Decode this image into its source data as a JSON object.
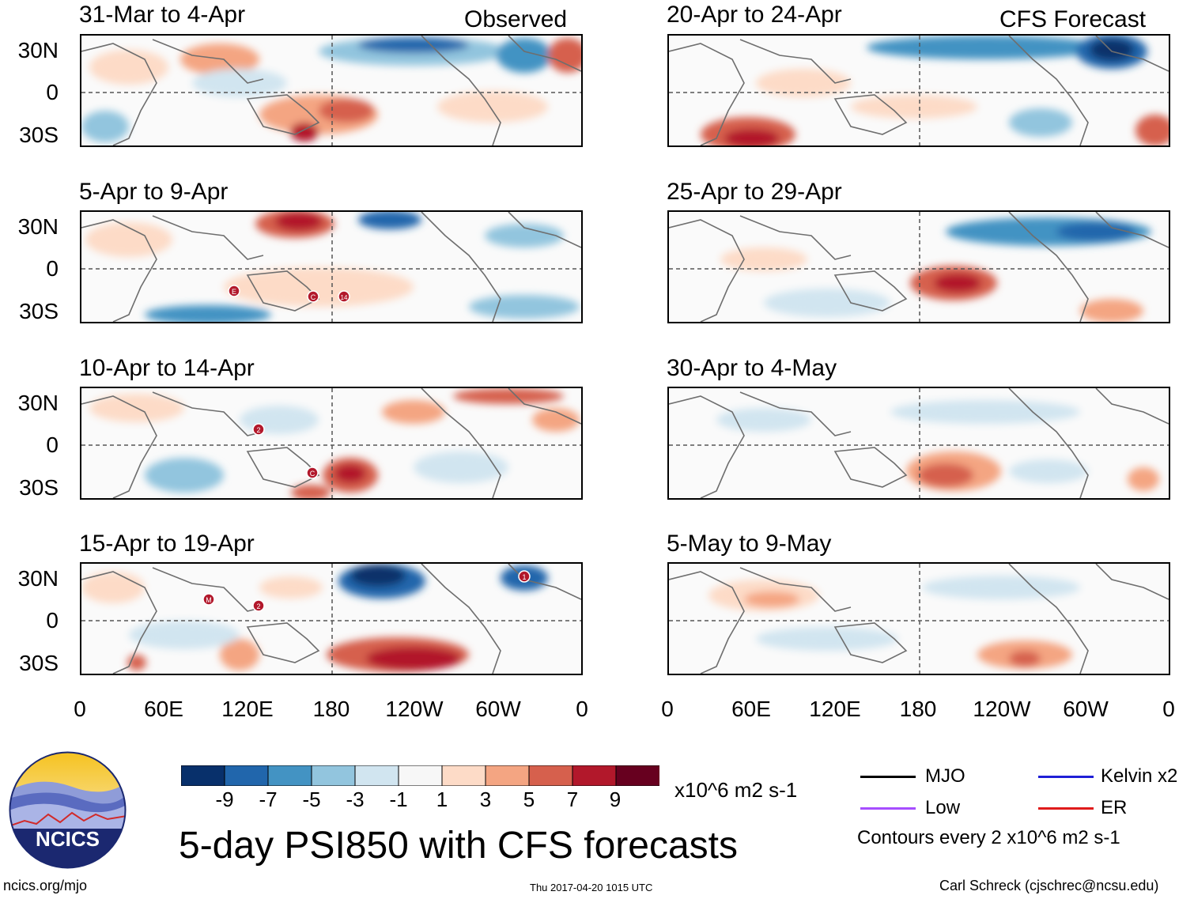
{
  "left_column_label": "Observed",
  "right_column_label": "CFS Forecast",
  "observed_panels": [
    {
      "title": "31-Mar to 4-Apr"
    },
    {
      "title": "5-Apr to 9-Apr"
    },
    {
      "title": "10-Apr to 14-Apr"
    },
    {
      "title": "15-Apr to 19-Apr"
    }
  ],
  "forecast_panels": [
    {
      "title": "20-Apr to 24-Apr"
    },
    {
      "title": "25-Apr to 29-Apr"
    },
    {
      "title": "30-Apr to 4-May"
    },
    {
      "title": "5-May to 9-May"
    }
  ],
  "lat_labels": [
    "30N",
    "0",
    "30S"
  ],
  "lon_labels": [
    "0",
    "60E",
    "120E",
    "180",
    "120W",
    "60W",
    "0"
  ],
  "storm_markers": [
    {
      "panel": "5-Apr to 9-Apr",
      "label": "E"
    },
    {
      "panel": "5-Apr to 9-Apr",
      "label": "C"
    },
    {
      "panel": "5-Apr to 9-Apr",
      "label": "14"
    },
    {
      "panel": "10-Apr to 14-Apr",
      "label": "2"
    },
    {
      "panel": "10-Apr to 14-Apr",
      "label": "C"
    },
    {
      "panel": "15-Apr to 19-Apr",
      "label": "M"
    },
    {
      "panel": "15-Apr to 19-Apr",
      "label": "2"
    },
    {
      "panel": "15-Apr to 19-Apr",
      "label": "1"
    }
  ],
  "colorbar": {
    "colors": [
      "#08306b",
      "#2166ac",
      "#4393c3",
      "#92c5de",
      "#d1e5f0",
      "#f7f7f7",
      "#fddbc7",
      "#f4a582",
      "#d6604d",
      "#b2182b",
      "#67001f"
    ],
    "ticks": [
      "-9",
      "-7",
      "-5",
      "-3",
      "-1",
      "1",
      "3",
      "5",
      "7",
      "9"
    ],
    "units": "x10^6 m2 s-1"
  },
  "legend": {
    "items": [
      {
        "label": "MJO",
        "color": "#000000"
      },
      {
        "label": "Kelvin x2",
        "color": "#1f1fd6"
      },
      {
        "label": "Low",
        "color": "#a64dff"
      },
      {
        "label": "ER",
        "color": "#e01b1b"
      }
    ],
    "contour_note": "Contours every 2 x10^6 m2 s-1"
  },
  "logo_text": "NCICS",
  "main_title": "5-day PSI850 with CFS forecasts",
  "footer": {
    "url": "ncics.org/mjo",
    "timestamp": "Thu 2017-04-20 1015 UTC",
    "credit": "Carl Schreck (cjschrec@ncsu.edu)"
  }
}
